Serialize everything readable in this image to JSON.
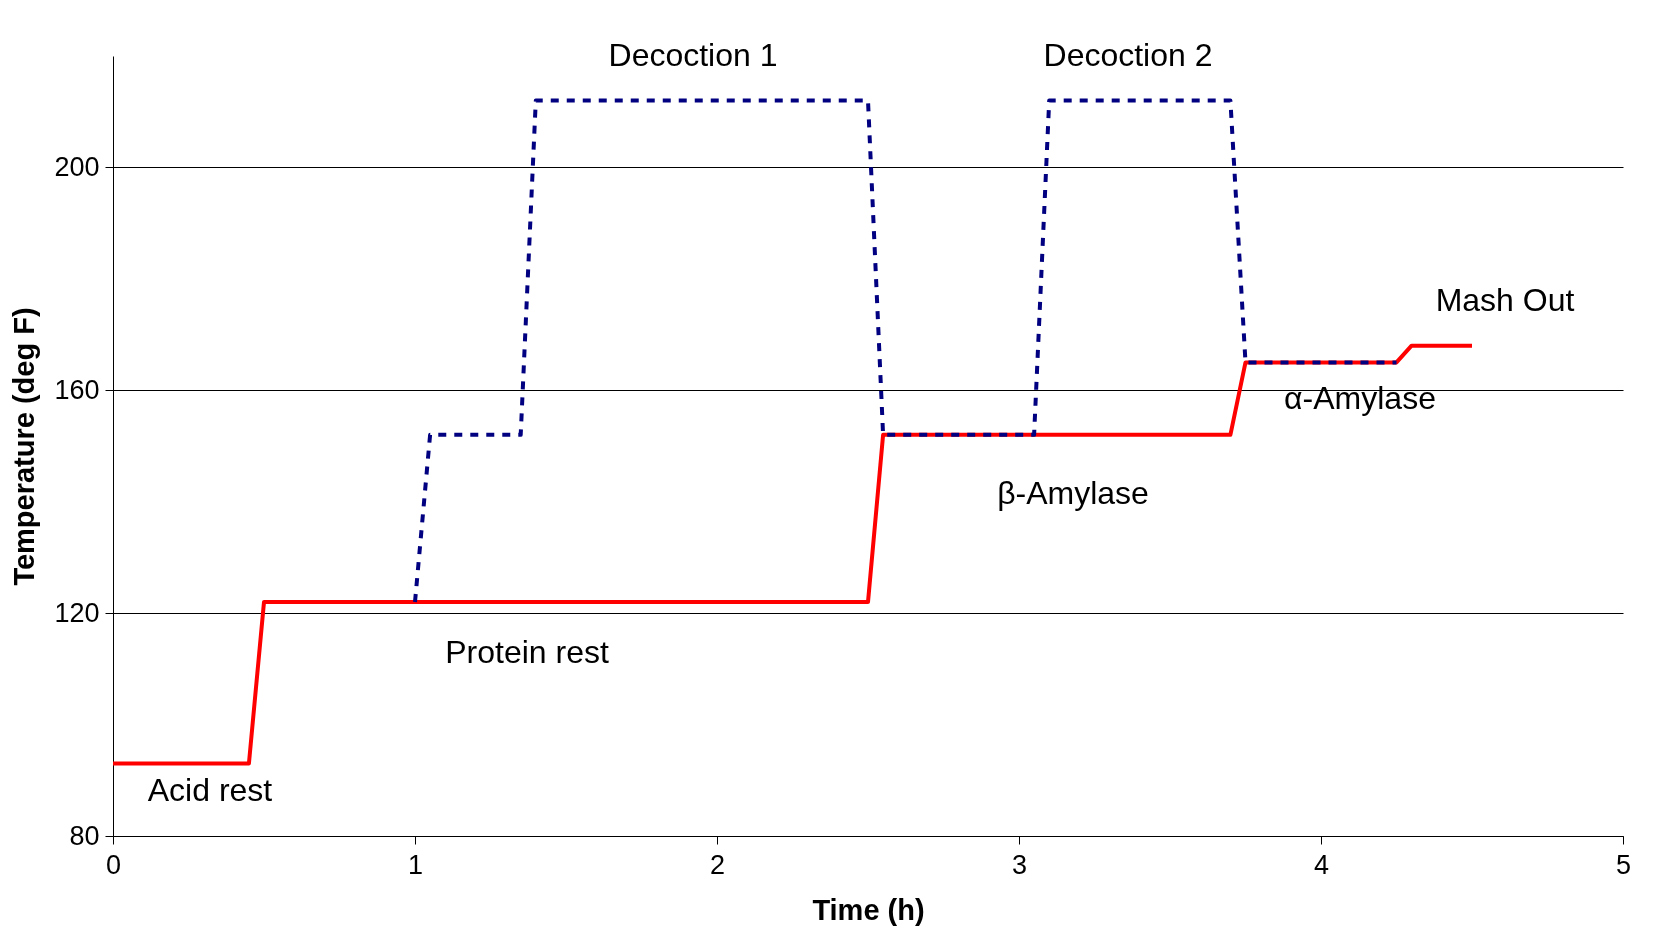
{
  "chart_data": {
    "type": "line",
    "xlabel": "Time (h)",
    "ylabel": "Temperature (deg F)",
    "xlim": [
      0,
      5
    ],
    "xticks": [
      0,
      1,
      2,
      3,
      4,
      5
    ],
    "ylim": [
      80,
      220
    ],
    "yticks": [
      80,
      120,
      160,
      200
    ],
    "grid": "y",
    "marker": "none",
    "series": [
      {
        "color": "#ff0000",
        "line_style": "solid",
        "x": [
          0,
          0.45,
          0.5,
          2.5,
          2.55,
          3.7,
          3.75,
          4.25,
          4.3,
          4.5
        ],
        "values": [
          93,
          93,
          122,
          122,
          152,
          152,
          165,
          165,
          168,
          168
        ]
      },
      {
        "color": "#000080",
        "line_style": "dotted",
        "x": [
          1,
          1.05,
          1.35,
          1.4,
          2.5,
          2.55,
          3.05,
          3.1,
          3.7,
          3.75,
          4.25
        ],
        "values": [
          122,
          152,
          152,
          212,
          212,
          152,
          152,
          212,
          212,
          165,
          165
        ]
      }
    ],
    "annotations": [
      "Decoction 1",
      "Decoction 2",
      "Mash Out",
      "α-Amylase",
      "β-Amylase",
      "Protein rest",
      "Acid rest"
    ]
  }
}
